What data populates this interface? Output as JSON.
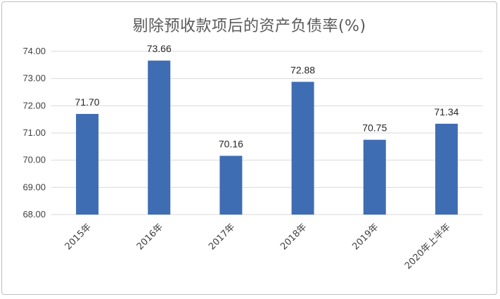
{
  "chart_data": {
    "type": "bar",
    "title": "剔除预收款项后的资产负债率(%)",
    "categories": [
      "2015年",
      "2016年",
      "2017年",
      "2018年",
      "2019年",
      "2020年上半年"
    ],
    "values": [
      71.7,
      73.66,
      70.16,
      72.88,
      70.75,
      71.34
    ],
    "value_labels": [
      "71.70",
      "73.66",
      "70.16",
      "72.88",
      "70.75",
      "71.34"
    ],
    "y_ticks": [
      "68.00",
      "69.00",
      "70.00",
      "71.00",
      "72.00",
      "73.00",
      "74.00"
    ],
    "ylim": [
      68,
      74
    ],
    "grid": true,
    "legend": "none",
    "bar_color": "#3f6db3",
    "grid_color": "#d9d9d9"
  }
}
